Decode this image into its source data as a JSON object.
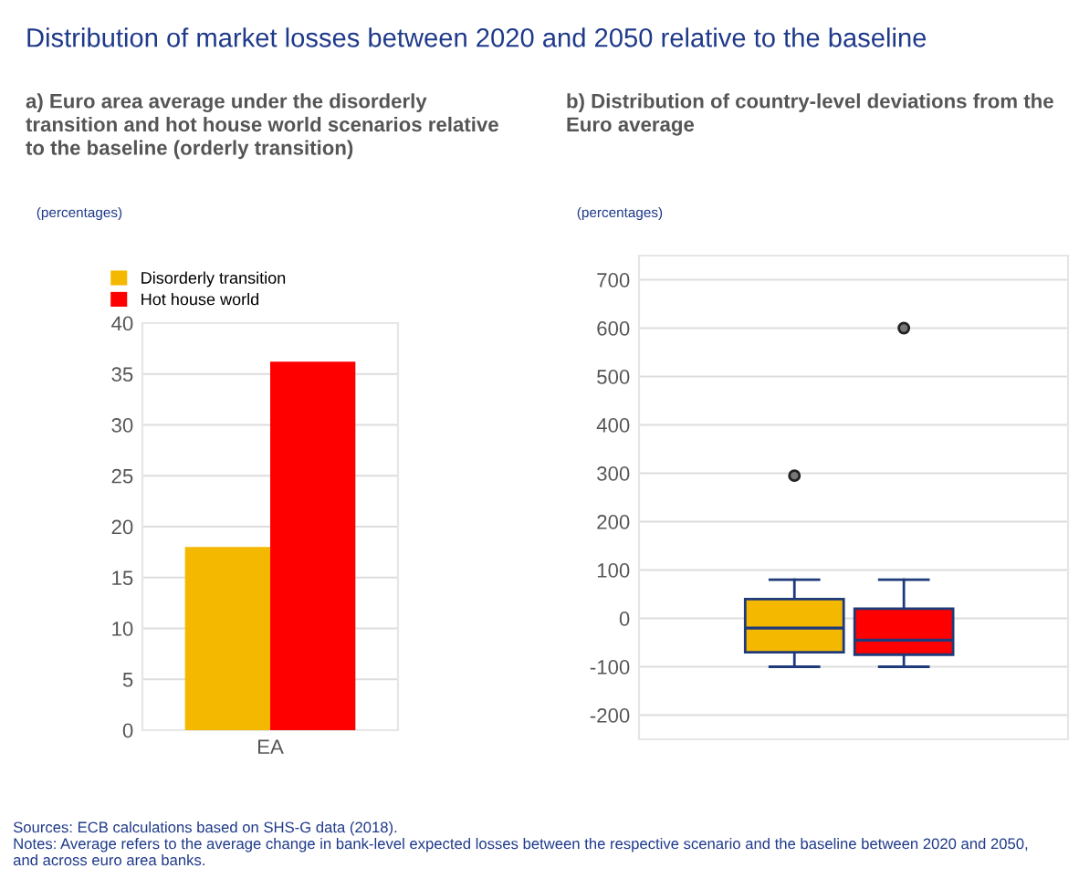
{
  "chart_data": [
    {
      "type": "bar",
      "title": "Distribution of market losses between 2020 and 2050 relative to the baseline",
      "subtitle": "a) Euro area average under the disorderly transition and hot house world scenarios relative to the baseline (orderly transition)",
      "ylabel": "(percentages)",
      "categories": [
        "EA"
      ],
      "series": [
        {
          "name": "Disorderly transition",
          "color": "#f5b800",
          "values": [
            18
          ]
        },
        {
          "name": "Hot house world",
          "color": "#ff0000",
          "values": [
            36.2
          ]
        }
      ],
      "ylim": [
        0,
        40
      ],
      "yticks": [
        0,
        5,
        10,
        15,
        20,
        25,
        30,
        35,
        40
      ],
      "grid": "y",
      "legend": "top left",
      "annotations": [
        "Sources: ECB calculations based on SHS-G data (2018).",
        "Notes: Average refers to the average change in bank-level expected losses between the respective scenario and the baseline between 2020 and 2050, and across euro area banks."
      ]
    },
    {
      "type": "box",
      "title": "b) Distribution of country-level deviations from the Euro average",
      "ylabel": "(percentages)",
      "categories": [
        null,
        null
      ],
      "colors": [
        "#f5b800",
        "#ff0000"
      ],
      "boxes": [
        {
          "low": -100,
          "q1": -70,
          "median": -20,
          "q3": 40,
          "high": 80,
          "outliers": [
            295
          ]
        },
        {
          "low": -100,
          "q1": -75,
          "median": -45,
          "q3": 20,
          "high": 80,
          "outliers": [
            600
          ]
        }
      ],
      "ylim": [
        -250,
        750
      ],
      "yticks": [
        -200,
        -100,
        0,
        100,
        200,
        300,
        400,
        500,
        600,
        700
      ],
      "grid": "y"
    }
  ]
}
